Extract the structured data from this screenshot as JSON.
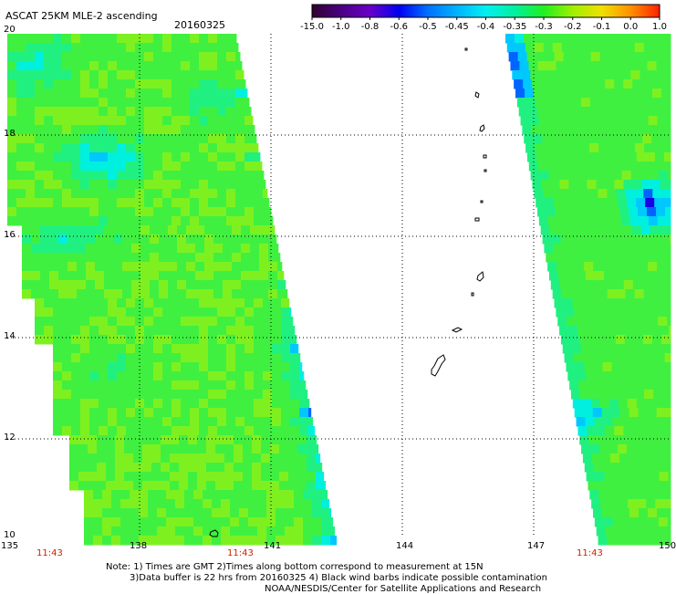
{
  "header": {
    "title": "ASCAT 25KM MLE-2 ascending",
    "date": "20160325"
  },
  "colorbar": {
    "labels": [
      "-15.0",
      "-1.0",
      "-0.8",
      "-0.6",
      "-0.5",
      "-0.45",
      "-0.4",
      "-0.35",
      "-0.3",
      "-0.2",
      "-0.1",
      "0.0",
      "1.0"
    ],
    "colors": [
      "#300030",
      "#4a0082",
      "#6a00c8",
      "#0000f0",
      "#0070ff",
      "#00b4ff",
      "#00f0f0",
      "#00f0a0",
      "#20f020",
      "#a0f000",
      "#f0e000",
      "#ff9000",
      "#ff2000"
    ]
  },
  "map": {
    "lat_labels": [
      "20",
      "18",
      "16",
      "14",
      "12",
      "10"
    ],
    "lon_labels": [
      "135",
      "138",
      "141",
      "144",
      "147",
      "150"
    ],
    "lat_range": [
      10,
      20
    ],
    "lon_range": [
      135,
      150
    ],
    "grid": "dotted"
  },
  "times": {
    "color": "#cc2200",
    "labels": [
      "11:43",
      "11:43",
      "11:43"
    ]
  },
  "notes": {
    "line1": "Note: 1) Times are GMT 2)Times along bottom correspond to measurement at 15N",
    "line2": "3)Data buffer is 22 hrs from 20160325 4) Black wind barbs indicate possible contamination",
    "line3": "NOAA/NESDIS/Center for Satellite Applications and Research"
  }
}
